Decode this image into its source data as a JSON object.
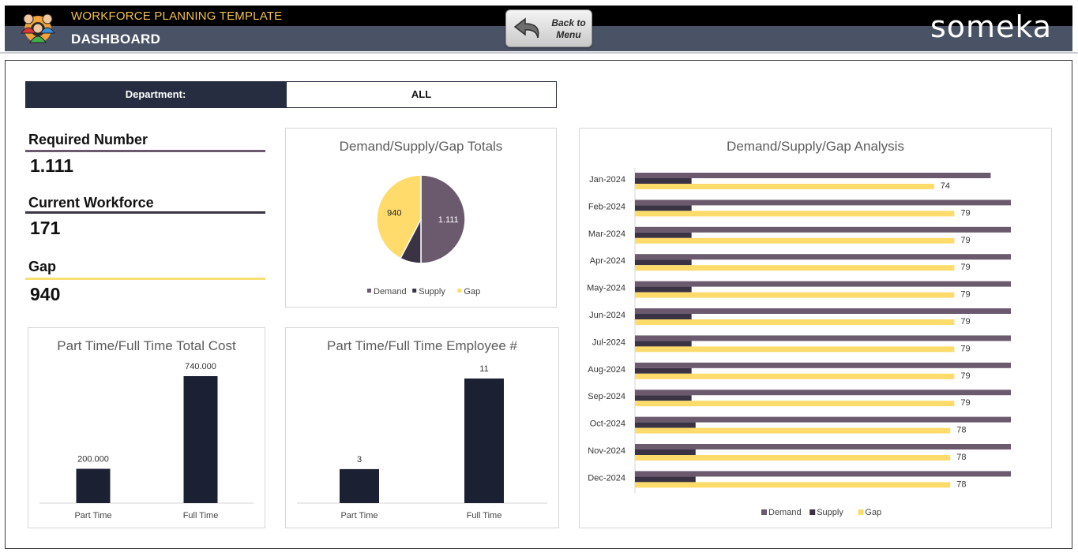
{
  "header": {
    "app_title": "WORKFORCE PLANNING TEMPLATE",
    "page_title": "DASHBOARD",
    "back_button": {
      "line1": "Back to",
      "line2": "Menu"
    },
    "brand": "someka"
  },
  "filter": {
    "label": "Department:",
    "value": "ALL"
  },
  "kpis": [
    {
      "label": "Required Number",
      "value": "1.111",
      "color": "#6b5a6e"
    },
    {
      "label": "Current Workforce",
      "value": "171",
      "color": "#3a3343"
    },
    {
      "label": "Gap",
      "value": "940",
      "color": "#f7df74"
    }
  ],
  "colors": {
    "demand": "#6b5a6e",
    "supply": "#3a3343",
    "gap": "#fedb6b",
    "bar": "#1c2033",
    "header_dark": "#262d40"
  },
  "charts": {
    "pie": {
      "type": "pie",
      "title": "Demand/Supply/Gap Totals",
      "labels": [
        "Demand",
        "Supply",
        "Gap"
      ],
      "values": [
        1111,
        171,
        940
      ],
      "data_labels": [
        "1.111",
        "",
        "940"
      ]
    },
    "cost": {
      "type": "bar",
      "title": "Part Time/Full Time Total Cost",
      "categories": [
        "Part Time",
        "Full Time"
      ],
      "values": [
        200000,
        740000
      ],
      "data_labels": [
        "200.000",
        "740.000"
      ]
    },
    "employees": {
      "type": "bar",
      "title": "Part Time/Full Time Employee #",
      "categories": [
        "Part Time",
        "Full Time"
      ],
      "values": [
        3,
        11
      ],
      "data_labels": [
        "3",
        "11"
      ]
    },
    "analysis": {
      "type": "bar",
      "orientation": "horizontal",
      "title": "Demand/Supply/Gap Analysis",
      "categories": [
        "Jan-2024",
        "Feb-2024",
        "Mar-2024",
        "Apr-2024",
        "May-2024",
        "Jun-2024",
        "Jul-2024",
        "Aug-2024",
        "Sep-2024",
        "Oct-2024",
        "Nov-2024",
        "Dec-2024"
      ],
      "series": [
        {
          "name": "Demand",
          "values": [
            88,
            93,
            93,
            93,
            93,
            93,
            93,
            93,
            93,
            93,
            93,
            93
          ]
        },
        {
          "name": "Supply",
          "values": [
            14,
            14,
            14,
            14,
            14,
            14,
            14,
            14,
            14,
            15,
            15,
            15
          ]
        },
        {
          "name": "Gap",
          "values": [
            74,
            79,
            79,
            79,
            79,
            79,
            79,
            79,
            79,
            78,
            78,
            78
          ]
        }
      ],
      "xlim": [
        0,
        93
      ],
      "legend": "bottom"
    }
  }
}
